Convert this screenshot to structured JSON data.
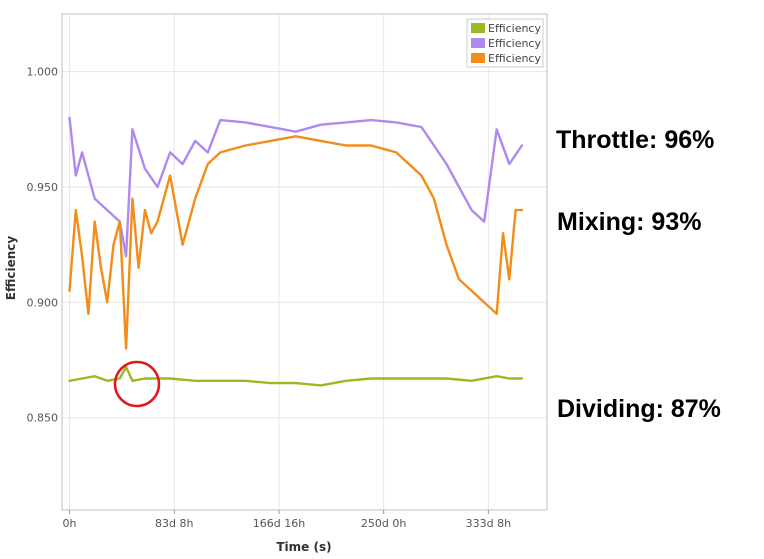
{
  "chart_data": {
    "type": "line",
    "xlabel": "Time (s)",
    "ylabel": "Efficiency",
    "x_tick_labels": [
      "0h",
      "83d 8h",
      "166d 16h",
      "250d 0h",
      "333d 8h"
    ],
    "x_tick_days": [
      0,
      83.33,
      166.67,
      250,
      333.33
    ],
    "xlim_days": [
      -6,
      380
    ],
    "y_ticks": [
      0.85,
      0.9,
      0.95,
      1.0
    ],
    "y_tick_labels": [
      "0.850",
      "0.900",
      "0.950",
      "1.000"
    ],
    "ylim": [
      0.81,
      1.025
    ],
    "grid": true,
    "legend_position": "top-right",
    "series": [
      {
        "name": "Efficiency",
        "color": "#99bb22",
        "x": [
          0,
          10,
          20,
          30,
          40,
          45,
          50,
          60,
          80,
          100,
          120,
          140,
          160,
          180,
          200,
          220,
          240,
          260,
          280,
          300,
          320,
          340,
          350,
          360
        ],
        "values": [
          0.866,
          0.867,
          0.868,
          0.866,
          0.867,
          0.872,
          0.866,
          0.867,
          0.867,
          0.866,
          0.866,
          0.866,
          0.865,
          0.865,
          0.864,
          0.866,
          0.867,
          0.867,
          0.867,
          0.867,
          0.866,
          0.868,
          0.867,
          0.867
        ]
      },
      {
        "name": "Efficiency",
        "color": "#b088ee",
        "x": [
          0,
          5,
          10,
          20,
          30,
          40,
          45,
          50,
          60,
          70,
          80,
          90,
          100,
          110,
          120,
          140,
          160,
          180,
          200,
          220,
          240,
          260,
          280,
          300,
          310,
          320,
          330,
          340,
          350,
          360
        ],
        "values": [
          0.98,
          0.955,
          0.965,
          0.945,
          0.94,
          0.935,
          0.92,
          0.975,
          0.958,
          0.95,
          0.965,
          0.96,
          0.97,
          0.965,
          0.979,
          0.978,
          0.976,
          0.974,
          0.977,
          0.978,
          0.979,
          0.978,
          0.976,
          0.96,
          0.95,
          0.94,
          0.935,
          0.975,
          0.96,
          0.968
        ]
      },
      {
        "name": "Efficiency",
        "color": "#f28c1a",
        "x": [
          0,
          5,
          10,
          15,
          20,
          25,
          30,
          35,
          40,
          45,
          50,
          55,
          60,
          65,
          70,
          80,
          90,
          100,
          110,
          120,
          140,
          160,
          180,
          200,
          220,
          240,
          260,
          280,
          290,
          300,
          310,
          320,
          330,
          340,
          345,
          350,
          355,
          360
        ],
        "values": [
          0.905,
          0.94,
          0.92,
          0.895,
          0.935,
          0.915,
          0.9,
          0.925,
          0.935,
          0.88,
          0.945,
          0.915,
          0.94,
          0.93,
          0.935,
          0.955,
          0.925,
          0.945,
          0.96,
          0.965,
          0.968,
          0.97,
          0.972,
          0.97,
          0.968,
          0.968,
          0.965,
          0.955,
          0.945,
          0.925,
          0.91,
          0.905,
          0.9,
          0.895,
          0.93,
          0.91,
          0.94,
          0.94
        ]
      }
    ]
  },
  "annotations": {
    "throttle": "Throttle: 96%",
    "mixing": "Mixing: 93%",
    "dividing": "Dividing: 87%"
  }
}
